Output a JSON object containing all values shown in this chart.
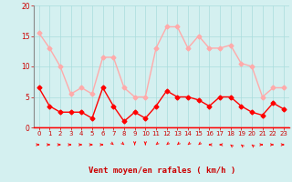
{
  "x": [
    0,
    1,
    2,
    3,
    4,
    5,
    6,
    7,
    8,
    9,
    10,
    11,
    12,
    13,
    14,
    15,
    16,
    17,
    18,
    19,
    20,
    21,
    22,
    23
  ],
  "wind_avg": [
    6.5,
    3.5,
    2.5,
    2.5,
    2.5,
    1.5,
    6.5,
    3.5,
    1.0,
    2.5,
    1.5,
    3.5,
    6.0,
    5.0,
    5.0,
    4.5,
    3.5,
    5.0,
    5.0,
    3.5,
    2.5,
    2.0,
    4.0,
    3.0
  ],
  "wind_gust": [
    15.5,
    13.0,
    10.0,
    5.5,
    6.5,
    5.5,
    11.5,
    11.5,
    6.5,
    5.0,
    5.0,
    13.0,
    16.5,
    16.5,
    13.0,
    15.0,
    13.0,
    13.0,
    13.5,
    10.5,
    10.0,
    5.0,
    6.5,
    6.5
  ],
  "wind_dirs": [
    0,
    0,
    0,
    0,
    0,
    0,
    0,
    45,
    45,
    90,
    90,
    135,
    135,
    135,
    135,
    135,
    180,
    180,
    225,
    225,
    225,
    0,
    0,
    0
  ],
  "xlabel": "Vent moyen/en rafales ( km/h )",
  "ylim": [
    0,
    20
  ],
  "yticks": [
    0,
    5,
    10,
    15,
    20
  ],
  "xticks": [
    0,
    1,
    2,
    3,
    4,
    5,
    6,
    7,
    8,
    9,
    10,
    11,
    12,
    13,
    14,
    15,
    16,
    17,
    18,
    19,
    20,
    21,
    22,
    23
  ],
  "avg_color": "#ff0000",
  "gust_color": "#ffaaaa",
  "bg_color": "#d4f0f0",
  "grid_color": "#aadddd",
  "xlabel_color": "#cc0000",
  "tick_color": "#cc0000",
  "line_width": 1.0,
  "marker_size": 2.5
}
